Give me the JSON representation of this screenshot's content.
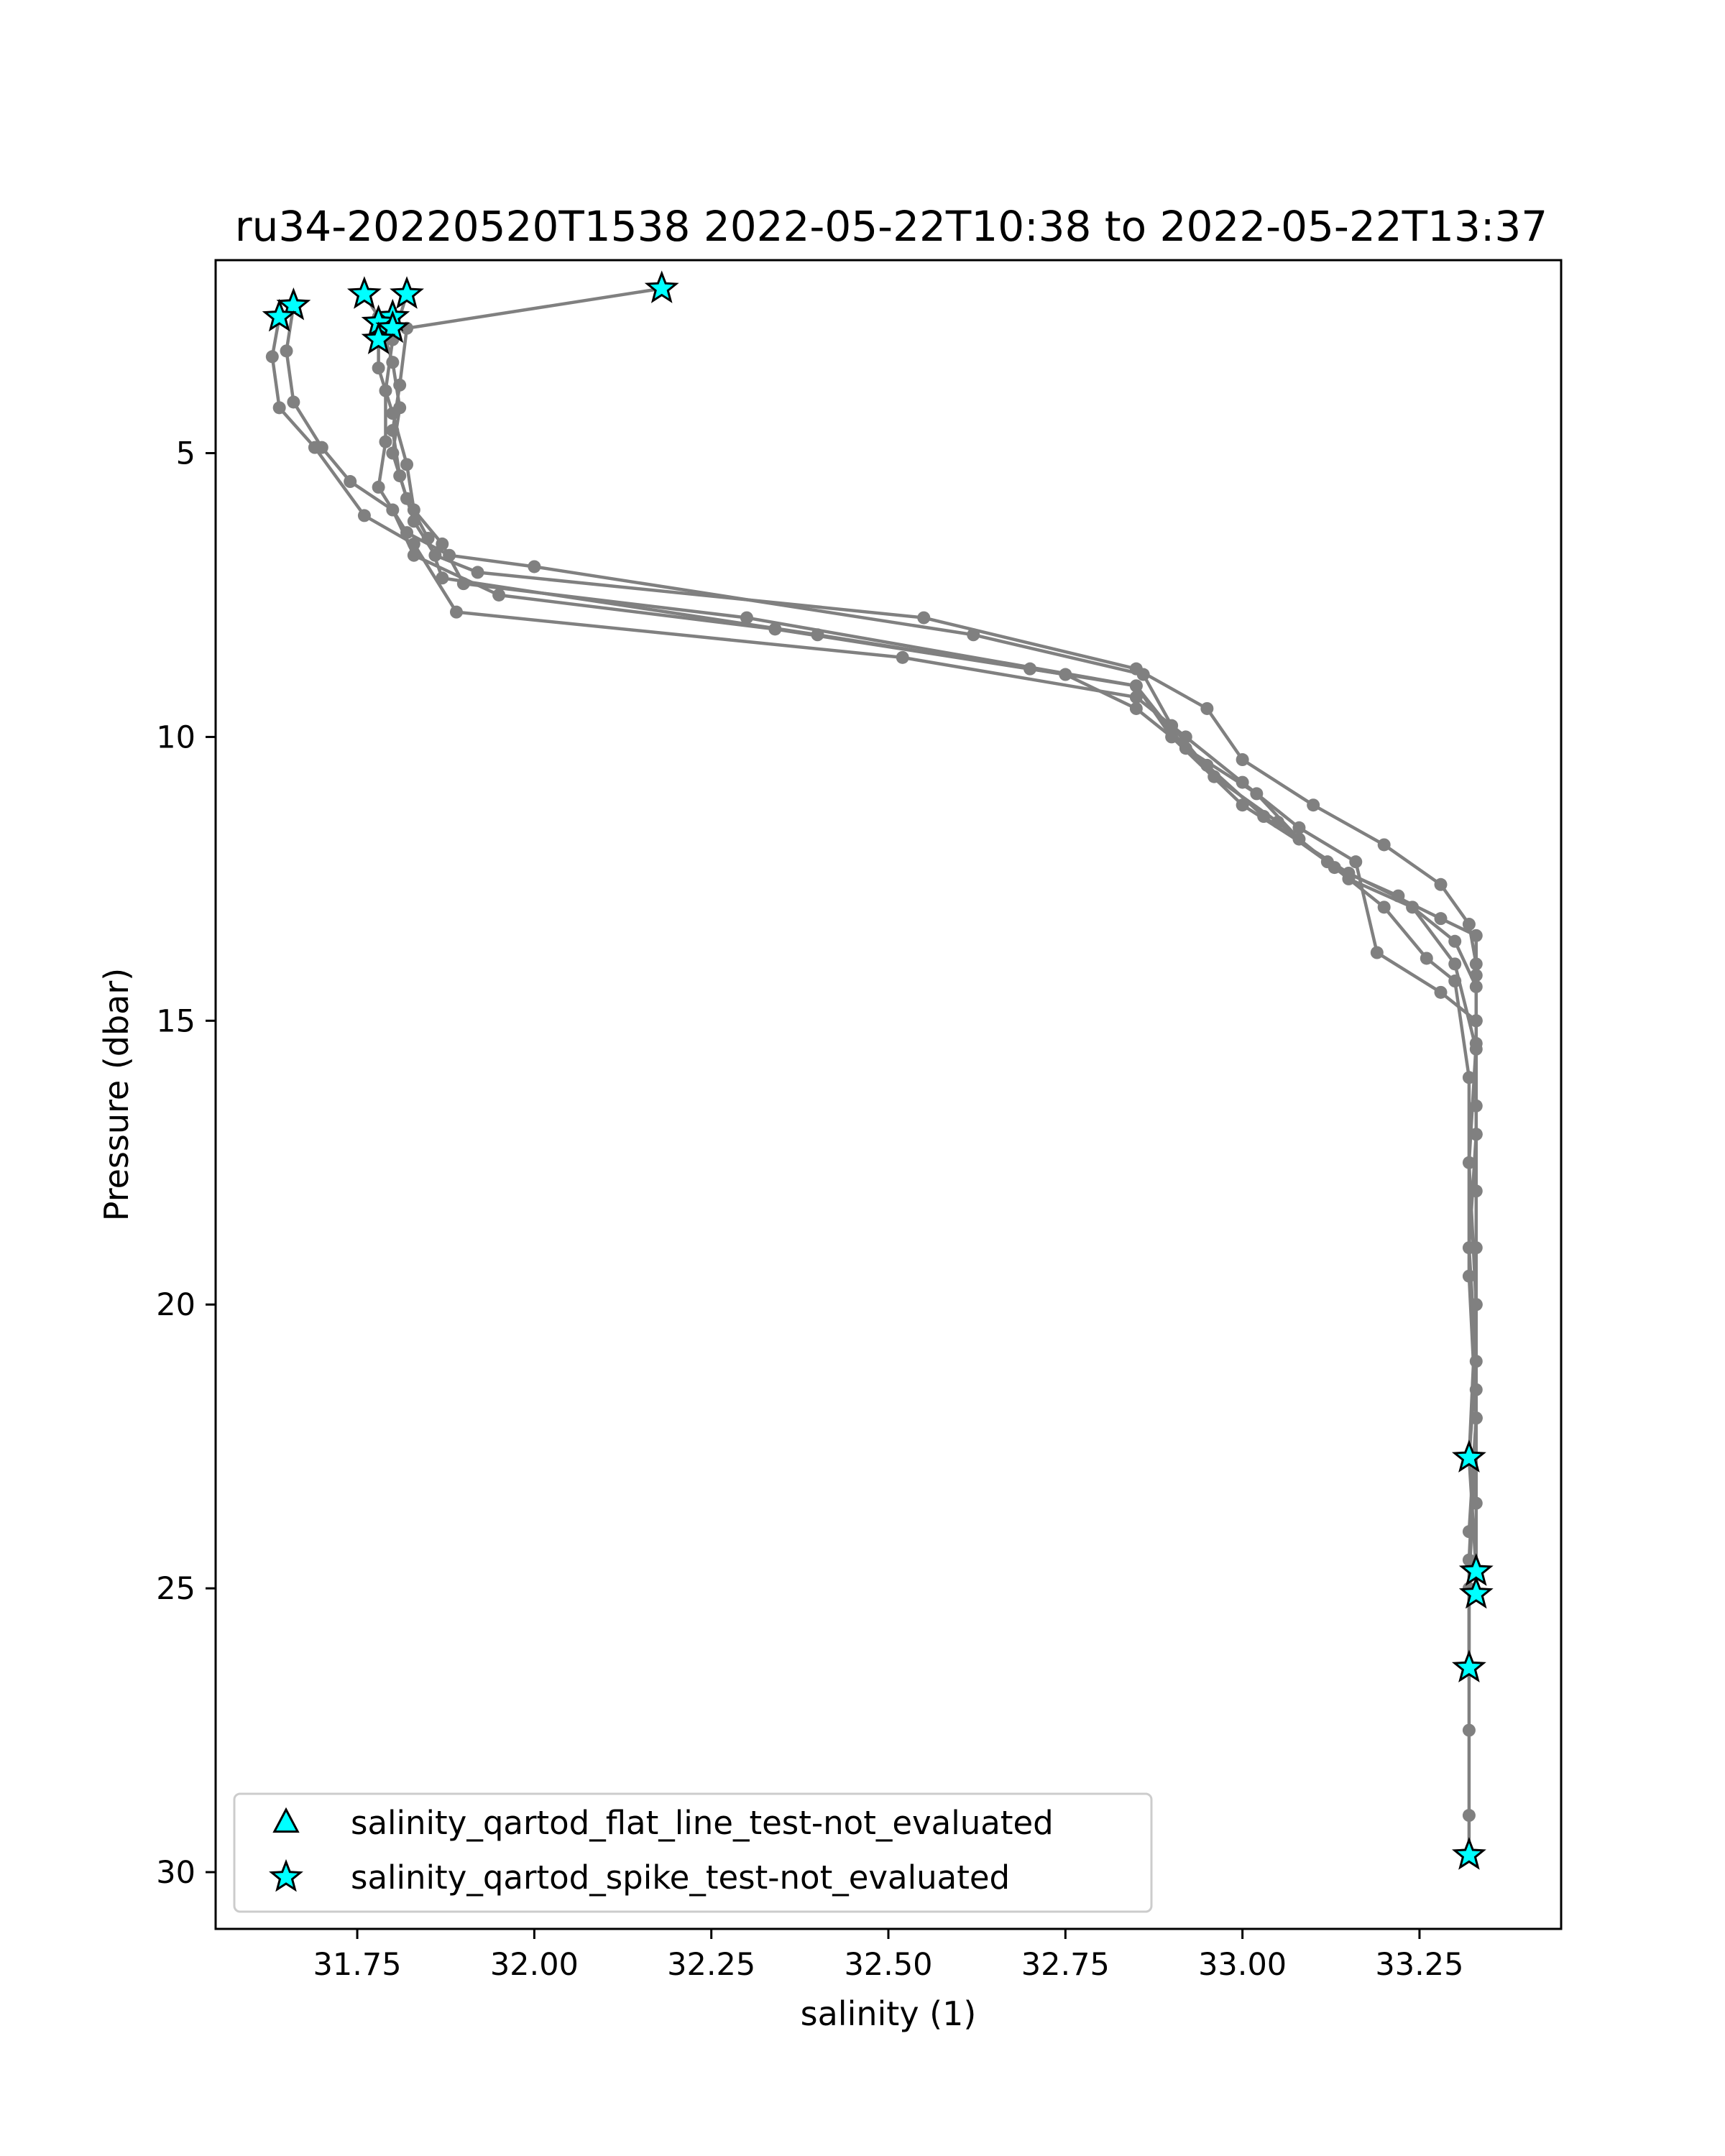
{
  "chart_data": {
    "type": "scatter",
    "title": "ru34-20220520T1538 2022-05-22T10:38 to 2022-05-22T13:37",
    "xlabel": "salinity (1)",
    "ylabel": "Pressure (dbar)",
    "xlim": [
      31.55,
      33.45
    ],
    "ylim": [
      31.0,
      1.6
    ],
    "y_inverted": true,
    "grid": false,
    "xticks": [
      {
        "value": 31.75,
        "label": "31.75"
      },
      {
        "value": 32.0,
        "label": "32.00"
      },
      {
        "value": 32.25,
        "label": "32.25"
      },
      {
        "value": 32.5,
        "label": "32.50"
      },
      {
        "value": 32.75,
        "label": "32.75"
      },
      {
        "value": 33.0,
        "label": "33.00"
      },
      {
        "value": 33.25,
        "label": "33.25"
      }
    ],
    "yticks": [
      {
        "value": 5,
        "label": "5"
      },
      {
        "value": 10,
        "label": "10"
      },
      {
        "value": 15,
        "label": "15"
      },
      {
        "value": 20,
        "label": "20"
      },
      {
        "value": 25,
        "label": "25"
      },
      {
        "value": 30,
        "label": "30"
      }
    ],
    "series": [
      {
        "color": "#808080",
        "marker": "circle",
        "profiles": [
          [
            [
              32.18,
              2.1
            ],
            [
              31.82,
              2.8
            ],
            [
              31.81,
              3.8
            ],
            [
              31.8,
              4.6
            ],
            [
              31.81,
              5.4
            ],
            [
              31.83,
              6.2
            ],
            [
              31.86,
              6.8
            ],
            [
              31.92,
              7.1
            ],
            [
              32.55,
              7.9
            ],
            [
              32.85,
              8.8
            ],
            [
              32.95,
              9.5
            ],
            [
              33.0,
              10.4
            ],
            [
              33.1,
              11.2
            ],
            [
              33.2,
              11.9
            ],
            [
              33.28,
              12.6
            ],
            [
              33.32,
              13.3
            ],
            [
              33.33,
              14.0
            ],
            [
              33.33,
              15.0
            ],
            [
              33.33,
              17.0
            ],
            [
              33.32,
              19.0
            ],
            [
              33.33,
              21.0
            ],
            [
              33.32,
              22.7
            ],
            [
              33.33,
              24.7
            ]
          ],
          [
            [
              31.82,
              2.2
            ],
            [
              31.8,
              3.0
            ],
            [
              31.79,
              3.9
            ],
            [
              31.79,
              4.8
            ],
            [
              31.78,
              5.6
            ],
            [
              31.82,
              6.4
            ],
            [
              31.88,
              6.8
            ],
            [
              32.0,
              7.0
            ],
            [
              32.62,
              8.2
            ],
            [
              32.86,
              8.9
            ],
            [
              32.9,
              9.8
            ],
            [
              32.96,
              10.7
            ],
            [
              33.05,
              11.5
            ],
            [
              33.13,
              12.3
            ],
            [
              33.22,
              12.8
            ],
            [
              33.3,
              13.6
            ],
            [
              33.33,
              14.4
            ],
            [
              33.33,
              15.4
            ],
            [
              33.32,
              17.5
            ],
            [
              33.33,
              20.0
            ],
            [
              33.33,
              22.0
            ],
            [
              33.32,
              24.5
            ],
            [
              33.32,
              26.4
            ]
          ],
          [
            [
              31.76,
              2.2
            ],
            [
              31.78,
              2.6
            ],
            [
              31.8,
              3.4
            ],
            [
              31.81,
              4.2
            ],
            [
              31.8,
              5.0
            ],
            [
              31.82,
              5.8
            ],
            [
              31.85,
              6.5
            ],
            [
              31.87,
              7.2
            ],
            [
              32.4,
              8.2
            ],
            [
              32.7,
              8.8
            ],
            [
              32.85,
              9.1
            ],
            [
              32.92,
              10.2
            ],
            [
              33.02,
              11.0
            ],
            [
              33.08,
              11.8
            ],
            [
              33.15,
              12.5
            ],
            [
              33.24,
              13.0
            ],
            [
              33.3,
              14.0
            ],
            [
              33.33,
              15.5
            ],
            [
              33.33,
              18.0
            ],
            [
              33.33,
              21.5
            ],
            [
              33.33,
              23.5
            ],
            [
              33.33,
              25.1
            ]
          ],
          [
            [
              31.66,
              2.4
            ],
            [
              31.65,
              3.2
            ],
            [
              31.66,
              4.1
            ],
            [
              31.7,
              4.9
            ],
            [
              31.74,
              5.5
            ],
            [
              31.8,
              6.0
            ],
            [
              31.83,
              6.8
            ],
            [
              31.95,
              7.5
            ],
            [
              32.34,
              8.1
            ],
            [
              32.75,
              8.9
            ],
            [
              32.85,
              9.5
            ],
            [
              32.95,
              10.5
            ],
            [
              33.03,
              11.4
            ],
            [
              33.12,
              12.2
            ],
            [
              33.2,
              13.0
            ],
            [
              33.26,
              13.9
            ],
            [
              33.3,
              14.3
            ],
            [
              33.32,
              16.0
            ],
            [
              33.32,
              19.5
            ],
            [
              33.33,
              22.0
            ],
            [
              33.32,
              25.0
            ],
            [
              33.32,
              27.5
            ],
            [
              33.32,
              29.0
            ],
            [
              33.32,
              29.7
            ]
          ],
          [
            [
              31.64,
              2.6
            ],
            [
              31.63,
              3.3
            ],
            [
              31.64,
              4.2
            ],
            [
              31.69,
              4.9
            ],
            [
              31.76,
              6.1
            ],
            [
              31.83,
              6.6
            ],
            [
              31.89,
              7.8
            ],
            [
              32.52,
              8.6
            ],
            [
              32.85,
              9.3
            ],
            [
              32.92,
              10.0
            ],
            [
              33.0,
              10.8
            ],
            [
              33.08,
              11.6
            ],
            [
              33.16,
              12.2
            ],
            [
              33.19,
              13.8
            ],
            [
              33.28,
              14.5
            ],
            [
              33.33,
              15.0
            ],
            [
              33.33,
              16.5
            ],
            [
              33.33,
              19.0
            ],
            [
              33.33,
              22.0
            ],
            [
              33.32,
              24.0
            ]
          ],
          [
            [
              31.78,
              3.0
            ],
            [
              31.78,
              3.5
            ],
            [
              31.8,
              4.3
            ],
            [
              31.82,
              5.2
            ],
            [
              31.83,
              6.0
            ],
            [
              31.87,
              6.6
            ],
            [
              31.9,
              7.3
            ],
            [
              32.3,
              7.9
            ],
            [
              32.85,
              9.1
            ],
            [
              32.9,
              10.0
            ],
            [
              33.0,
              11.2
            ],
            [
              33.15,
              12.4
            ],
            [
              33.28,
              13.2
            ],
            [
              33.33,
              13.5
            ],
            [
              33.33,
              14.2
            ],
            [
              33.33,
              17.0
            ],
            [
              33.33,
              20.0
            ],
            [
              33.32,
              22.7
            ]
          ]
        ]
      }
    ],
    "flags": [
      {
        "name": "salinity_qartod_flat_line_test-not_evaluated",
        "marker": "triangle",
        "color": "#00FFFF",
        "points": []
      },
      {
        "name": "salinity_qartod_spike_test-not_evaluated",
        "marker": "star",
        "color": "#00FFFF",
        "points": [
          [
            32.18,
            2.1
          ],
          [
            31.82,
            2.2
          ],
          [
            31.76,
            2.2
          ],
          [
            31.66,
            2.4
          ],
          [
            31.64,
            2.6
          ],
          [
            31.8,
            2.6
          ],
          [
            31.78,
            2.7
          ],
          [
            31.8,
            2.8
          ],
          [
            31.78,
            3.0
          ],
          [
            33.32,
            22.7
          ],
          [
            33.33,
            24.7
          ],
          [
            33.33,
            25.1
          ],
          [
            33.32,
            26.4
          ],
          [
            33.32,
            29.7
          ]
        ]
      }
    ],
    "legend": {
      "position": "lower-left",
      "entries": [
        {
          "label": "salinity_qartod_flat_line_test-not_evaluated",
          "marker": "triangle",
          "color": "#00FFFF"
        },
        {
          "label": "salinity_qartod_spike_test-not_evaluated",
          "marker": "star",
          "color": "#00FFFF"
        }
      ]
    }
  }
}
